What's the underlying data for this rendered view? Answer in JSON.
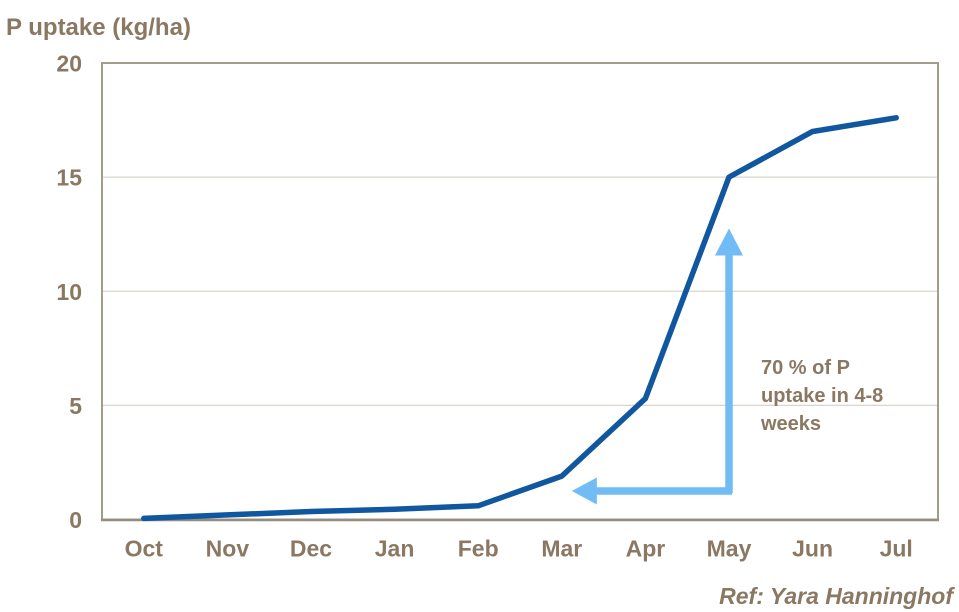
{
  "title": "P uptake (kg/ha)",
  "ref_note": "Ref: Yara Hanninghof",
  "annotation": {
    "text": "70 % of P\nuptake in 4-8\nweeks"
  },
  "colors": {
    "line": "#1057A0",
    "arrow": "#72BCF6",
    "text_brown": "#8A7862",
    "frame": "#A69C8E",
    "frame_bottom": "#968C7D",
    "gridline": "#DAD4CC"
  },
  "chart_data": {
    "type": "line",
    "categories": [
      "Oct",
      "Nov",
      "Dec",
      "Jan",
      "Feb",
      "Mar",
      "Apr",
      "May",
      "Jun",
      "Jul"
    ],
    "values": [
      0.05,
      0.2,
      0.35,
      0.45,
      0.6,
      1.9,
      5.3,
      15,
      17,
      17.6
    ],
    "title": "P uptake (kg/ha)",
    "xlabel": "",
    "ylabel": "P uptake (kg/ha)",
    "ylim": [
      0,
      20
    ],
    "yticks": [
      0,
      5,
      10,
      15,
      20
    ],
    "grid": "horizontal",
    "legend": "none",
    "annotations": [
      {
        "kind": "arrow-up",
        "at_category": "May",
        "y_from": 1.15,
        "y_to": 12.75
      },
      {
        "kind": "arrow-left",
        "at_y": 1.25,
        "from_category": "May",
        "to_category": "Mar",
        "to_offset_frac": 0.12
      },
      {
        "kind": "text",
        "text": "70 % of P uptake in 4-8 weeks"
      }
    ]
  }
}
